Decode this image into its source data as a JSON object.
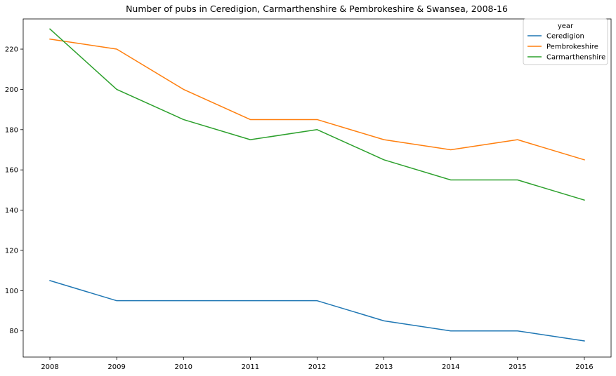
{
  "chart_data": {
    "type": "line",
    "title": "Number of pubs in Ceredigion, Carmarthenshire & Pembrokeshire & Swansea, 2008-16",
    "xlabel": "",
    "ylabel": "",
    "x": [
      "2008",
      "2009",
      "2010",
      "2011",
      "2012",
      "2013",
      "2014",
      "2015",
      "2016"
    ],
    "xlim": [
      2007.6,
      2016.4
    ],
    "ylim": [
      67,
      235
    ],
    "yticks": [
      "80",
      "100",
      "120",
      "140",
      "160",
      "180",
      "200",
      "220"
    ],
    "grid": false,
    "legend": {
      "title": "year",
      "placement": "top-right"
    },
    "series": [
      {
        "name": "Ceredigion",
        "color": "#1f77b4",
        "values": [
          105,
          95,
          95,
          95,
          95,
          85,
          80,
          80,
          75
        ]
      },
      {
        "name": "Pembrokeshire",
        "color": "#ff7f0e",
        "values": [
          225,
          220,
          200,
          185,
          185,
          175,
          170,
          175,
          165
        ]
      },
      {
        "name": "Carmarthenshire",
        "color": "#2ca02c",
        "values": [
          230,
          200,
          185,
          175,
          180,
          165,
          155,
          155,
          145
        ]
      }
    ]
  }
}
